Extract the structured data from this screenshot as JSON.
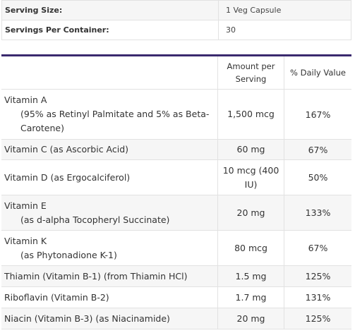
{
  "summary": {
    "serving_size_label": "Serving Size:",
    "serving_size_value": "1 Veg Capsule",
    "servings_label": "Servings Per Container:",
    "servings_value": "30"
  },
  "facts": {
    "header": {
      "name": "",
      "amount_line1": "Amount per",
      "amount_line2": "Serving",
      "dv": "% Daily Value"
    },
    "rows": [
      {
        "name": "Vitamin A",
        "detail1": "(95% as Retinyl Palmitate and 5% as Beta-",
        "detail2": "Carotene)",
        "amount": "1,500 mcg",
        "dv": "167%"
      },
      {
        "name": "Vitamin C (as Ascorbic Acid)",
        "amount": "60 mg",
        "dv": "67%"
      },
      {
        "name": "Vitamin D (as Ergocalciferol)",
        "amount_line1": "10 mcg (400",
        "amount_line2": "IU)",
        "dv": "50%"
      },
      {
        "name": "Vitamin E",
        "detail1": "(as d-alpha Tocopheryl Succinate)",
        "amount": "20 mg",
        "dv": "133%"
      },
      {
        "name": "Vitamin K",
        "detail1": "(as Phytonadione K-1)",
        "amount": "80 mcg",
        "dv": "67%"
      },
      {
        "name": "Thiamin (Vitamin B-1) (from Thiamin HCl)",
        "amount": "1.5 mg",
        "dv": "125%"
      },
      {
        "name": "Riboflavin (Vitamin B-2)",
        "amount": "1.7 mg",
        "dv": "131%"
      },
      {
        "name": "Niacin (Vitamin B-3) (as Niacinamide)",
        "amount": "20 mg",
        "dv": "125%"
      }
    ]
  }
}
